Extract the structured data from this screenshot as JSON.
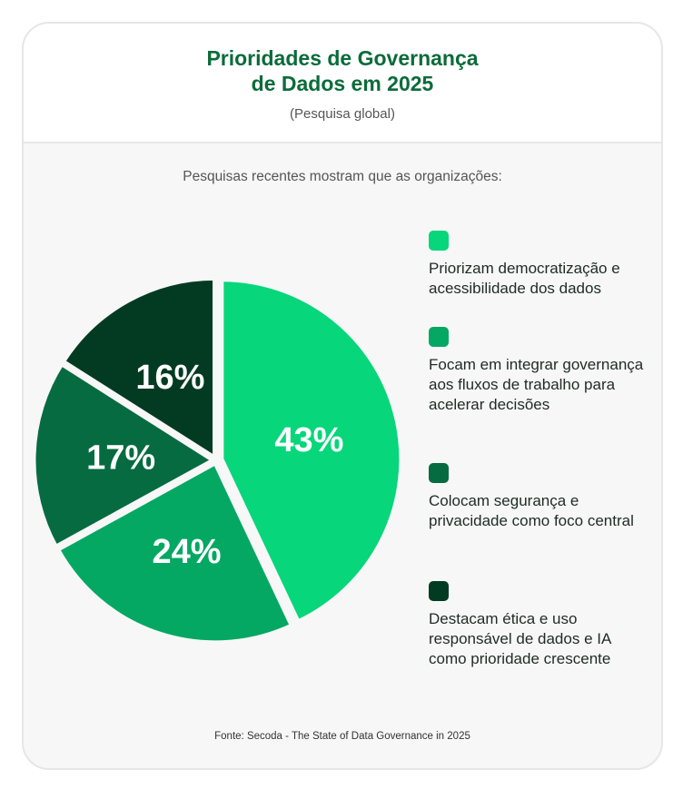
{
  "header": {
    "title_line1": "Prioridades de Governança",
    "title_line2": "de Dados em 2025",
    "subtitle": "(Pesquisa global)"
  },
  "intro": "Pesquisas recentes mostram que as organizações:",
  "source": "Fonte: Secoda - The State of Data Governance in 2025",
  "chart_data": {
    "type": "pie",
    "title": "Prioridades de Governança de Dados em 2025",
    "start": "12 o'clock, clockwise",
    "slices": [
      {
        "label": "Priorizam democratização e acessibilidade dos dados",
        "value": 43,
        "display": "43%",
        "color": "#07d67b"
      },
      {
        "label": "Focam em integrar governança aos fluxos de trabalho para acelerar decisões",
        "value": 24,
        "display": "24%",
        "color": "#04a862"
      },
      {
        "label": "Colocam segurança e privacidade como foco central",
        "value": 17,
        "display": "17%",
        "color": "#066b41"
      },
      {
        "label": "Destacam ética e uso responsável de dados e IA como prioridade crescente",
        "value": 16,
        "display": "16%",
        "color": "#033b22"
      }
    ],
    "legend": "right"
  }
}
